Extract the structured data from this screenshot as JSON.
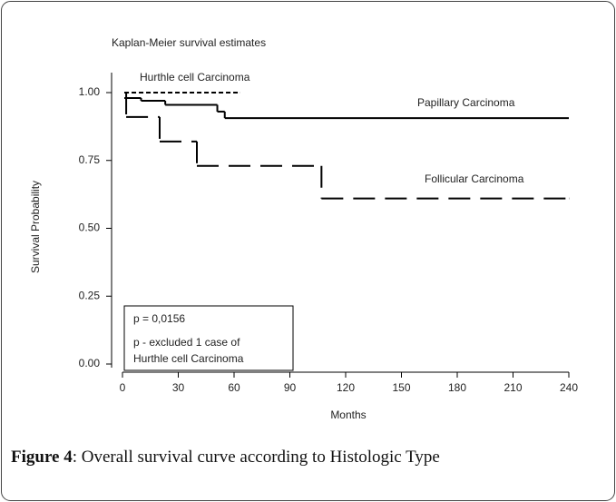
{
  "chart_data": {
    "type": "step",
    "title": "Kaplan-Meier survival estimates",
    "xlabel": "Months",
    "ylabel": "Survival Probability",
    "xlim": [
      0,
      240
    ],
    "xticks": [
      0,
      30,
      60,
      90,
      120,
      150,
      180,
      210,
      240
    ],
    "ylim": [
      0,
      1
    ],
    "yticks": [
      {
        "value": 0,
        "label": "0.00"
      },
      {
        "value": 0.25,
        "label": "0.25"
      },
      {
        "value": 0.5,
        "label": "0.50"
      },
      {
        "value": 0.75,
        "label": "0.75"
      },
      {
        "value": 1,
        "label": "1.00"
      }
    ],
    "series": [
      {
        "name": "Papillary Carcinoma",
        "color": "#000000",
        "linestyle": "solid",
        "x": [
          1,
          10,
          23,
          51,
          55,
          240
        ],
        "values": [
          0.98,
          0.97,
          0.955,
          0.93,
          0.906,
          0.906
        ]
      },
      {
        "name": "Hurthle cell Carcinoma",
        "color": "#000000",
        "linestyle": "dotted",
        "x": [
          1,
          63
        ],
        "values": [
          1,
          1
        ]
      },
      {
        "name": "Follicular Carcinoma",
        "color": "#000000",
        "linestyle": "dashed",
        "x": [
          1,
          2,
          20,
          40,
          107,
          240
        ],
        "values": [
          1,
          0.91,
          0.82,
          0.73,
          0.61,
          0.61
        ]
      }
    ],
    "annotations": [
      "p = 0,0156",
      "p - excluded 1 case of",
      "Hurthle cell Carcinoma"
    ]
  },
  "caption": {
    "label": "Figure 4",
    "text": ": Overall survival curve according to Histologic Type"
  }
}
